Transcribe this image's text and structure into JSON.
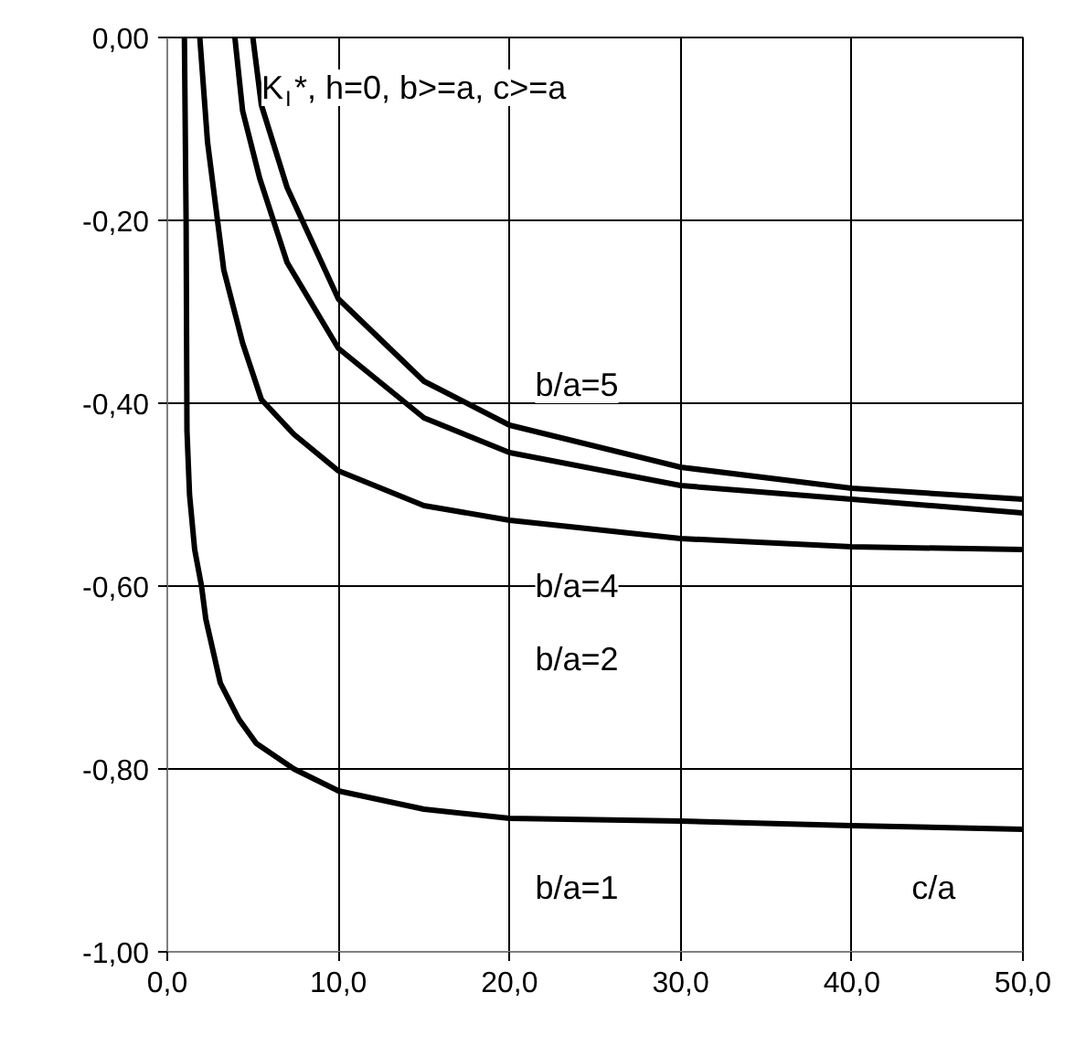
{
  "chart_data": {
    "type": "line",
    "title": "K$_{I}$*, h=0, b>=a, c>=a",
    "xlabel": "c/a",
    "xlim": [
      0,
      50
    ],
    "ylim": [
      -1,
      0
    ],
    "xticks": [
      {
        "value": 0,
        "label": "0,0"
      },
      {
        "value": 10,
        "label": "10,0"
      },
      {
        "value": 20,
        "label": "20,0"
      },
      {
        "value": 30,
        "label": "30,0"
      },
      {
        "value": 40,
        "label": "40,0"
      },
      {
        "value": 50,
        "label": "50,0"
      }
    ],
    "yticks": [
      {
        "value": -1,
        "label": "-1,00"
      },
      {
        "value": -0.8,
        "label": "-0,80"
      },
      {
        "value": -0.6,
        "label": "-0,60"
      },
      {
        "value": -0.4,
        "label": "-0,40"
      },
      {
        "value": -0.2,
        "label": "-0,20"
      },
      {
        "value": 0,
        "label": "0,00"
      }
    ],
    "grid": true,
    "marker": "none",
    "line_style": "solid",
    "series": [
      {
        "color": "#000000",
        "x": [
          1.0,
          1.1,
          1.15,
          1.3,
          1.6,
          2.0,
          2.25,
          3.1,
          4.2,
          5.2,
          7.4,
          10,
          15,
          20,
          30,
          40,
          50
        ],
        "values": [
          0,
          -0.2,
          -0.43,
          -0.5,
          -0.56,
          -0.6,
          -0.636,
          -0.706,
          -0.746,
          -0.772,
          -0.8,
          -0.824,
          -0.844,
          -0.854,
          -0.857,
          -0.862,
          -0.866
        ]
      },
      {
        "color": "#000000",
        "x": [
          1.9,
          2.35,
          3.3,
          4.4,
          5.5,
          7.4,
          10,
          15,
          20,
          30,
          40,
          50
        ],
        "values": [
          0,
          -0.114,
          -0.254,
          -0.334,
          -0.396,
          -0.434,
          -0.474,
          -0.512,
          -0.528,
          -0.548,
          -0.557,
          -0.56
        ]
      },
      {
        "color": "#000000",
        "x": [
          3.95,
          4.4,
          5.4,
          7.0,
          10,
          15,
          20,
          30,
          40,
          50
        ],
        "values": [
          0,
          -0.08,
          -0.154,
          -0.246,
          -0.34,
          -0.416,
          -0.454,
          -0.49,
          -0.505,
          -0.52
        ]
      },
      {
        "color": "#000000",
        "x": [
          5.0,
          5.5,
          7.0,
          10,
          15,
          20,
          30,
          40,
          50
        ],
        "values": [
          0,
          -0.074,
          -0.164,
          -0.286,
          -0.376,
          -0.424,
          -0.47,
          -0.493,
          -0.505
        ]
      }
    ],
    "annotations": [
      "b/a=5",
      "b/a=4",
      "b/a=2",
      "b/a=1"
    ]
  }
}
